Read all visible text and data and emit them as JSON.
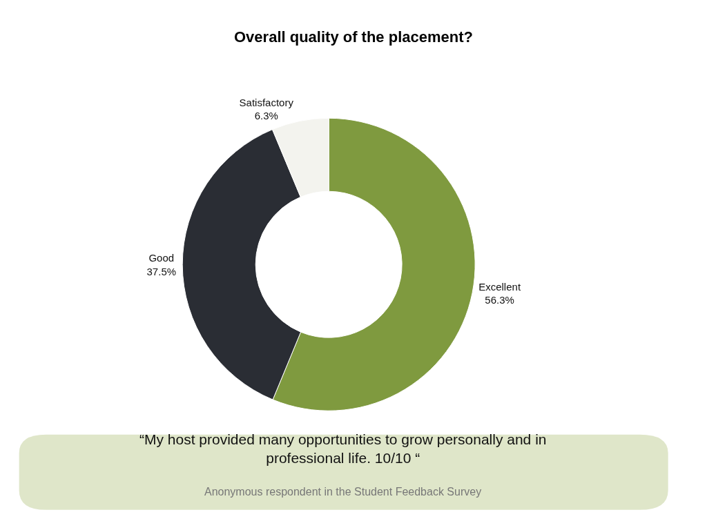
{
  "chart_data": {
    "type": "donut",
    "title": "Overall quality of the placement?",
    "categories": [
      "Excellent",
      "Good",
      "Satisfactory"
    ],
    "values": [
      56.3,
      37.5,
      6.3
    ],
    "colors": [
      "#7f9a3f",
      "#2a2d34",
      "#f3f3ee"
    ],
    "value_labels": [
      "56.3%",
      "37.5%",
      "6.3%"
    ],
    "legend": false,
    "annotations": [
      "“My host provided many opportunities to grow personally and in professional life. 10/10 “",
      "Anonymous respondent in the Student Feedback Survey"
    ]
  }
}
